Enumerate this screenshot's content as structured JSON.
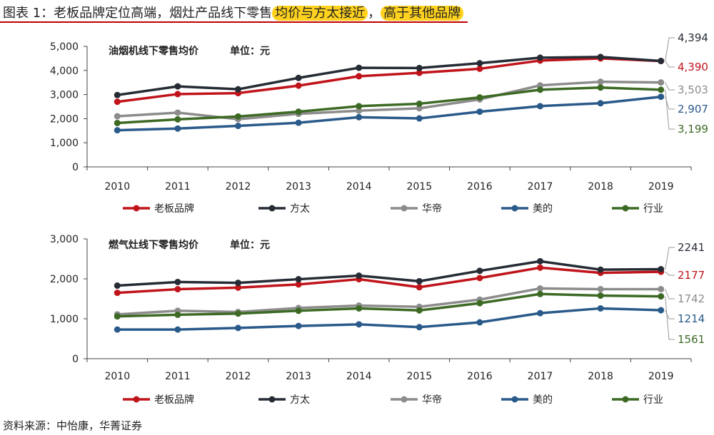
{
  "figure": {
    "title_prefix": "图表 1：老板品牌定位高端，烟灶产品线下零售",
    "title_hl1": "均价与方太接近",
    "title_sep": "，",
    "title_hl2": "高于其他品牌",
    "source": "资料来源：中怡康，华菁证券",
    "accent": "#c00000",
    "highlight": "#ffd21f"
  },
  "chart_data": [
    {
      "type": "line",
      "title": "油烟机线下零售均价",
      "unit": "单位：元",
      "xlabel": "",
      "ylabel": "",
      "x": [
        "2010",
        "2011",
        "2012",
        "2013",
        "2014",
        "2015",
        "2016",
        "2017",
        "2018",
        "2019"
      ],
      "ylim": [
        0,
        5000
      ],
      "yticks": [
        0,
        1000,
        2000,
        3000,
        4000,
        5000
      ],
      "ytick_labels": [
        "0",
        "1,000",
        "2,000",
        "3,000",
        "4,000",
        "5,000"
      ],
      "grid": false,
      "legend_position": "bottom",
      "series": [
        {
          "name": "老板品牌",
          "color": "#c0141b",
          "values": [
            2700,
            3020,
            3060,
            3370,
            3760,
            3900,
            4070,
            4410,
            4500,
            4390
          ],
          "end_label": "4,390"
        },
        {
          "name": "方太",
          "color": "#262c35",
          "values": [
            2980,
            3340,
            3220,
            3690,
            4110,
            4100,
            4300,
            4530,
            4560,
            4394
          ],
          "end_label": "4,394"
        },
        {
          "name": "华帝",
          "color": "#8c8c8c",
          "values": [
            2100,
            2250,
            1980,
            2200,
            2330,
            2430,
            2800,
            3380,
            3530,
            3503
          ],
          "end_label": "3,503"
        },
        {
          "name": "美的",
          "color": "#2a5a8a",
          "values": [
            1520,
            1590,
            1700,
            1830,
            2060,
            2010,
            2290,
            2520,
            2640,
            2907
          ],
          "end_label": "2,907"
        },
        {
          "name": "行业",
          "color": "#3c6a24",
          "values": [
            1820,
            1970,
            2090,
            2290,
            2520,
            2620,
            2880,
            3200,
            3290,
            3199
          ],
          "end_label": "3,199"
        }
      ]
    },
    {
      "type": "line",
      "title": "燃气灶线下零售均价",
      "unit": "单位：元",
      "xlabel": "",
      "ylabel": "",
      "x": [
        "2010",
        "2011",
        "2012",
        "2013",
        "2014",
        "2015",
        "2016",
        "2017",
        "2018",
        "2019"
      ],
      "ylim": [
        0,
        3000
      ],
      "yticks": [
        0,
        1000,
        2000,
        3000
      ],
      "ytick_labels": [
        "0",
        "1,000",
        "2,000",
        "3,000"
      ],
      "grid": false,
      "legend_position": "bottom",
      "series": [
        {
          "name": "老板品牌",
          "color": "#c0141b",
          "values": [
            1650,
            1740,
            1780,
            1860,
            1990,
            1790,
            2020,
            2280,
            2150,
            2177
          ],
          "end_label": "2177"
        },
        {
          "name": "方太",
          "color": "#262c35",
          "values": [
            1830,
            1920,
            1900,
            1990,
            2080,
            1940,
            2200,
            2440,
            2230,
            2241
          ],
          "end_label": "2241"
        },
        {
          "name": "华帝",
          "color": "#8c8c8c",
          "values": [
            1110,
            1200,
            1170,
            1270,
            1330,
            1300,
            1480,
            1760,
            1740,
            1742
          ],
          "end_label": "1742"
        },
        {
          "name": "美的",
          "color": "#2a5a8a",
          "values": [
            730,
            730,
            770,
            820,
            860,
            790,
            910,
            1140,
            1260,
            1214
          ],
          "end_label": "1214"
        },
        {
          "name": "行业",
          "color": "#3c6a24",
          "values": [
            1060,
            1100,
            1130,
            1200,
            1260,
            1210,
            1390,
            1620,
            1580,
            1561
          ],
          "end_label": "1561"
        }
      ]
    }
  ]
}
